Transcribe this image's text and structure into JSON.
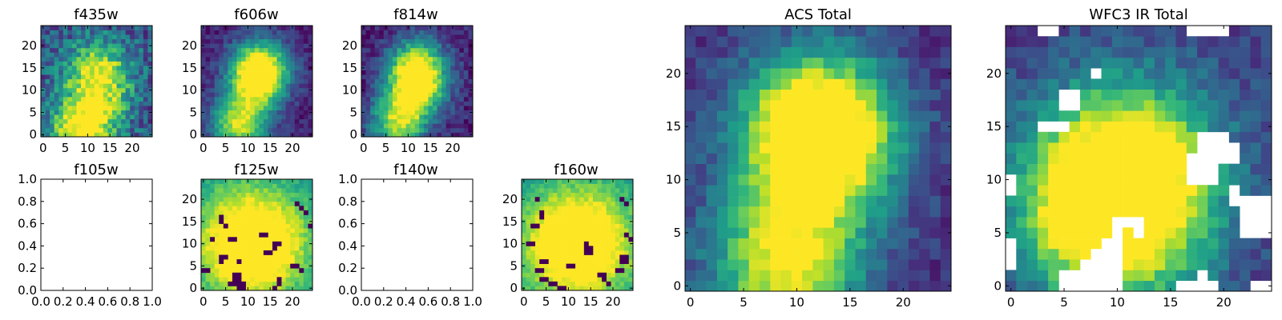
{
  "chart_data": [
    {
      "type": "heatmap",
      "title": "f435w",
      "xlim": [
        -0.5,
        24.5
      ],
      "ylim": [
        -0.5,
        24.5
      ],
      "xticks": [
        0,
        5,
        10,
        15,
        20
      ],
      "yticks": [
        0,
        5,
        10,
        15,
        20
      ],
      "colormap": "viridis",
      "peaks": [
        [
          9,
          1,
          1.0
        ],
        [
          12,
          15,
          0.55
        ],
        [
          13,
          10,
          0.5
        ]
      ],
      "spread": 5.0,
      "background": 0.3,
      "noise": 0.2,
      "masked": []
    },
    {
      "type": "heatmap",
      "title": "f606w",
      "xlim": [
        -0.5,
        24.5
      ],
      "ylim": [
        -0.5,
        24.5
      ],
      "xticks": [
        0,
        5,
        10,
        15,
        20
      ],
      "yticks": [
        0,
        5,
        10,
        15,
        20
      ],
      "colormap": "viridis",
      "peaks": [
        [
          8,
          2,
          0.95
        ],
        [
          12,
          12,
          0.95
        ],
        [
          13,
          16,
          0.7
        ]
      ],
      "spread": 4.5,
      "background": 0.1,
      "noise": 0.1,
      "masked": []
    },
    {
      "type": "heatmap",
      "title": "f814w",
      "xlim": [
        -0.5,
        24.5
      ],
      "ylim": [
        -0.5,
        24.5
      ],
      "xticks": [
        0,
        5,
        10,
        15,
        20
      ],
      "yticks": [
        0,
        5,
        10,
        15,
        20
      ],
      "colormap": "viridis",
      "peaks": [
        [
          8,
          3,
          0.9
        ],
        [
          12,
          11,
          1.0
        ],
        [
          12,
          16,
          0.7
        ]
      ],
      "spread": 4.5,
      "background": 0.1,
      "noise": 0.12,
      "masked": []
    },
    {
      "type": "empty",
      "title": "f105w",
      "xlim": [
        0,
        1
      ],
      "ylim": [
        0,
        1
      ],
      "xticks": [
        "0.0",
        "0.2",
        "0.4",
        "0.6",
        "0.8",
        "1.0"
      ],
      "yticks": [
        "0.0",
        "0.2",
        "0.4",
        "0.6",
        "0.8",
        "1.0"
      ]
    },
    {
      "type": "heatmap",
      "title": "f125w",
      "xlim": [
        -0.5,
        24.5
      ],
      "ylim": [
        -0.5,
        24.5
      ],
      "xticks": [
        0,
        5,
        10,
        15,
        20
      ],
      "yticks": [
        0,
        5,
        10,
        15,
        20
      ],
      "colormap": "viridis",
      "peaks": [
        [
          11,
          10,
          1.0
        ]
      ],
      "spread": 9.0,
      "background": 0.55,
      "noise": 0.08,
      "masked": [
        [
          4,
          16
        ],
        [
          4,
          15
        ],
        [
          5,
          14
        ],
        [
          2,
          11
        ],
        [
          6,
          11
        ],
        [
          7,
          11
        ],
        [
          13,
          12
        ],
        [
          14,
          12
        ],
        [
          16,
          10
        ],
        [
          17,
          10
        ],
        [
          16,
          9
        ],
        [
          14,
          8
        ],
        [
          15,
          8
        ],
        [
          21,
          19
        ],
        [
          22,
          18
        ],
        [
          23,
          17
        ],
        [
          24,
          14
        ],
        [
          4,
          7
        ],
        [
          5,
          7
        ],
        [
          4,
          6
        ],
        [
          8,
          6
        ],
        [
          0,
          4
        ],
        [
          1,
          4
        ],
        [
          20,
          5
        ],
        [
          21,
          5
        ],
        [
          22,
          4
        ],
        [
          7,
          3
        ],
        [
          8,
          3
        ],
        [
          7,
          2
        ],
        [
          8,
          2
        ],
        [
          6,
          1
        ],
        [
          7,
          1
        ],
        [
          8,
          1
        ],
        [
          9,
          1
        ],
        [
          8,
          0
        ],
        [
          9,
          0
        ],
        [
          17,
          2
        ],
        [
          17,
          1
        ],
        [
          16,
          0
        ]
      ]
    },
    {
      "type": "empty",
      "title": "f140w",
      "xlim": [
        0,
        1
      ],
      "ylim": [
        0,
        1
      ],
      "xticks": [
        "0.0",
        "0.2",
        "0.4",
        "0.6",
        "0.8",
        "1.0"
      ],
      "yticks": [
        "0.0",
        "0.2",
        "0.4",
        "0.6",
        "0.8",
        "1.0"
      ]
    },
    {
      "type": "heatmap",
      "title": "f160w",
      "xlim": [
        -0.5,
        24.5
      ],
      "ylim": [
        -0.5,
        24.5
      ],
      "xticks": [
        0,
        5,
        10,
        15,
        20
      ],
      "yticks": [
        0,
        5,
        10,
        15,
        20
      ],
      "colormap": "viridis",
      "peaks": [
        [
          12,
          10,
          1.0
        ]
      ],
      "spread": 9.0,
      "background": 0.55,
      "noise": 0.08,
      "masked": [
        [
          3,
          20
        ],
        [
          4,
          17
        ],
        [
          4,
          16
        ],
        [
          2,
          14
        ],
        [
          3,
          14
        ],
        [
          1,
          10
        ],
        [
          2,
          10
        ],
        [
          14,
          10
        ],
        [
          14,
          9
        ],
        [
          15,
          9
        ],
        [
          14,
          8
        ],
        [
          15,
          8
        ],
        [
          22,
          20
        ],
        [
          23,
          19
        ],
        [
          23,
          12
        ],
        [
          24,
          11
        ],
        [
          22,
          7
        ],
        [
          23,
          7
        ],
        [
          22,
          6
        ],
        [
          23,
          6
        ],
        [
          4,
          6
        ],
        [
          5,
          6
        ],
        [
          10,
          5
        ],
        [
          11,
          5
        ],
        [
          3,
          4
        ],
        [
          4,
          4
        ],
        [
          21,
          4
        ],
        [
          22,
          4
        ],
        [
          4,
          2
        ],
        [
          5,
          2
        ],
        [
          6,
          1
        ],
        [
          7,
          1
        ],
        [
          8,
          0
        ],
        [
          9,
          0
        ],
        [
          17,
          3
        ],
        [
          18,
          3
        ],
        [
          18,
          2
        ],
        [
          19,
          1
        ]
      ]
    },
    {
      "type": "heatmap",
      "title": "ACS Total",
      "xlim": [
        -0.5,
        24.5
      ],
      "ylim": [
        -0.5,
        24.5
      ],
      "xticks": [
        0,
        5,
        10,
        15,
        20
      ],
      "yticks": [
        0,
        5,
        10,
        15,
        20
      ],
      "colormap": "viridis",
      "peaks": [
        [
          9,
          2,
          1.0
        ],
        [
          12,
          13,
          0.95
        ],
        [
          12,
          16,
          0.7
        ]
      ],
      "spread": 5.0,
      "background": 0.15,
      "noise": 0.1,
      "masked": []
    },
    {
      "type": "heatmap",
      "title": "WFC3 IR Total",
      "xlim": [
        -0.5,
        24.5
      ],
      "ylim": [
        -0.5,
        24.5
      ],
      "xticks": [
        0,
        5,
        10,
        15,
        20
      ],
      "yticks": [
        0,
        5,
        10,
        15,
        20
      ],
      "colormap": "viridis",
      "peaks": [
        [
          11,
          11,
          1.0
        ],
        [
          9,
          6,
          0.9
        ]
      ],
      "spread": 6.0,
      "background": 0.2,
      "noise": 0.1,
      "masked": [
        [
          3,
          24
        ],
        [
          4,
          24
        ],
        [
          17,
          24
        ],
        [
          18,
          24
        ],
        [
          19,
          24
        ],
        [
          20,
          24
        ],
        [
          8,
          20
        ],
        [
          5,
          18
        ],
        [
          6,
          18
        ],
        [
          5,
          17
        ],
        [
          6,
          17
        ],
        [
          3,
          15
        ],
        [
          4,
          15
        ],
        [
          5,
          15
        ],
        [
          18,
          14
        ],
        [
          19,
          14
        ],
        [
          20,
          14
        ],
        [
          18,
          13
        ],
        [
          19,
          13
        ],
        [
          20,
          13
        ],
        [
          21,
          13
        ],
        [
          17,
          12
        ],
        [
          18,
          12
        ],
        [
          19,
          12
        ],
        [
          20,
          12
        ],
        [
          21,
          12
        ],
        [
          17,
          11
        ],
        [
          18,
          11
        ],
        [
          19,
          11
        ],
        [
          0,
          10
        ],
        [
          17,
          10
        ],
        [
          18,
          10
        ],
        [
          19,
          10
        ],
        [
          0,
          9
        ],
        [
          21,
          9
        ],
        [
          21,
          8
        ],
        [
          22,
          8
        ],
        [
          23,
          8
        ],
        [
          24,
          8
        ],
        [
          22,
          7
        ],
        [
          23,
          7
        ],
        [
          24,
          7
        ],
        [
          22,
          6
        ],
        [
          23,
          6
        ],
        [
          24,
          6
        ],
        [
          22,
          5
        ],
        [
          23,
          5
        ],
        [
          24,
          5
        ],
        [
          10,
          6
        ],
        [
          11,
          6
        ],
        [
          12,
          6
        ],
        [
          10,
          5
        ],
        [
          12,
          5
        ],
        [
          0,
          4
        ],
        [
          0,
          3
        ],
        [
          0,
          2
        ],
        [
          9,
          4
        ],
        [
          10,
          4
        ],
        [
          8,
          3
        ],
        [
          9,
          3
        ],
        [
          10,
          3
        ],
        [
          7,
          2
        ],
        [
          8,
          2
        ],
        [
          9,
          2
        ],
        [
          10,
          2
        ],
        [
          5,
          1
        ],
        [
          6,
          1
        ],
        [
          7,
          1
        ],
        [
          8,
          1
        ],
        [
          9,
          1
        ],
        [
          10,
          1
        ],
        [
          18,
          1
        ],
        [
          5,
          0
        ],
        [
          6,
          0
        ],
        [
          7,
          0
        ],
        [
          8,
          0
        ],
        [
          9,
          0
        ],
        [
          10,
          0
        ],
        [
          16,
          0
        ],
        [
          17,
          0
        ],
        [
          18,
          0
        ],
        [
          19,
          0
        ],
        [
          23,
          0
        ],
        [
          24,
          0
        ]
      ]
    }
  ]
}
